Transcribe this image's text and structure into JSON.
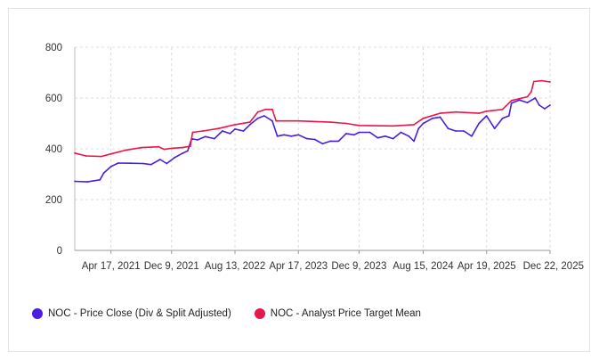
{
  "chart_data": {
    "type": "line",
    "title": "",
    "xlabel": "",
    "ylabel": "",
    "ylim": [
      0,
      800
    ],
    "yticks": [
      0,
      200,
      400,
      600,
      800
    ],
    "xlim": [
      "2020-11-27",
      "2025-12-22"
    ],
    "xticks": [
      {
        "date": "2021-04-17",
        "label": "Apr 17, 2021"
      },
      {
        "date": "2021-12-09",
        "label": "Dec 9, 2021"
      },
      {
        "date": "2022-08-13",
        "label": "Aug 13, 2022"
      },
      {
        "date": "2023-04-17",
        "label": "Apr 17, 2023"
      },
      {
        "date": "2023-12-09",
        "label": "Dec 9, 2023"
      },
      {
        "date": "2024-08-15",
        "label": "Aug 15, 2024"
      },
      {
        "date": "2025-04-19",
        "label": "Apr 19, 2025"
      },
      {
        "date": "2025-12-22",
        "label": "Dec 22, 2025"
      }
    ],
    "grid": true,
    "legend_position": "bottom-left",
    "series": [
      {
        "name": "NOC - Price Close (Div & Split Adjusted)",
        "color": "#4a1fe0",
        "points": [
          [
            "2020-11-27",
            272
          ],
          [
            "2021-01-15",
            270
          ],
          [
            "2021-03-05",
            278
          ],
          [
            "2021-03-20",
            305
          ],
          [
            "2021-04-17",
            330
          ],
          [
            "2021-05-15",
            344
          ],
          [
            "2021-07-01",
            343
          ],
          [
            "2021-08-20",
            342
          ],
          [
            "2021-09-20",
            338
          ],
          [
            "2021-10-25",
            358
          ],
          [
            "2021-11-20",
            342
          ],
          [
            "2021-12-20",
            365
          ],
          [
            "2022-01-20",
            382
          ],
          [
            "2022-02-10",
            392
          ],
          [
            "2022-02-25",
            440
          ],
          [
            "2022-03-20",
            435
          ],
          [
            "2022-04-20",
            448
          ],
          [
            "2022-05-25",
            440
          ],
          [
            "2022-06-25",
            470
          ],
          [
            "2022-07-25",
            460
          ],
          [
            "2022-08-13",
            478
          ],
          [
            "2022-09-15",
            470
          ],
          [
            "2022-10-10",
            495
          ],
          [
            "2022-11-10",
            520
          ],
          [
            "2022-12-05",
            530
          ],
          [
            "2023-01-05",
            510
          ],
          [
            "2023-01-25",
            450
          ],
          [
            "2023-02-20",
            455
          ],
          [
            "2023-03-20",
            450
          ],
          [
            "2023-04-17",
            455
          ],
          [
            "2023-05-20",
            440
          ],
          [
            "2023-06-20",
            437
          ],
          [
            "2023-07-20",
            420
          ],
          [
            "2023-08-20",
            430
          ],
          [
            "2023-09-20",
            430
          ],
          [
            "2023-10-20",
            460
          ],
          [
            "2023-11-20",
            455
          ],
          [
            "2023-12-09",
            465
          ],
          [
            "2024-01-20",
            465
          ],
          [
            "2024-02-20",
            443
          ],
          [
            "2024-03-20",
            450
          ],
          [
            "2024-04-20",
            440
          ],
          [
            "2024-05-20",
            465
          ],
          [
            "2024-06-20",
            450
          ],
          [
            "2024-07-10",
            430
          ],
          [
            "2024-07-28",
            480
          ],
          [
            "2024-08-15",
            500
          ],
          [
            "2024-09-20",
            520
          ],
          [
            "2024-10-20",
            525
          ],
          [
            "2024-11-20",
            480
          ],
          [
            "2024-12-20",
            470
          ],
          [
            "2025-01-20",
            470
          ],
          [
            "2025-02-20",
            450
          ],
          [
            "2025-03-20",
            500
          ],
          [
            "2025-04-19",
            530
          ],
          [
            "2025-05-20",
            480
          ],
          [
            "2025-06-20",
            520
          ],
          [
            "2025-07-15",
            530
          ],
          [
            "2025-07-25",
            580
          ],
          [
            "2025-08-25",
            592
          ],
          [
            "2025-09-25",
            582
          ],
          [
            "2025-10-25",
            600
          ],
          [
            "2025-11-10",
            572
          ],
          [
            "2025-12-01",
            558
          ],
          [
            "2025-12-22",
            572
          ]
        ]
      },
      {
        "name": "NOC - Analyst Price Target Mean",
        "color": "#e8174a",
        "points": [
          [
            "2020-11-27",
            383
          ],
          [
            "2021-01-10",
            372
          ],
          [
            "2021-03-10",
            370
          ],
          [
            "2021-04-17",
            380
          ],
          [
            "2021-06-15",
            395
          ],
          [
            "2021-08-15",
            405
          ],
          [
            "2021-10-20",
            408
          ],
          [
            "2021-11-10",
            398
          ],
          [
            "2021-12-09",
            402
          ],
          [
            "2022-01-20",
            405
          ],
          [
            "2022-02-20",
            410
          ],
          [
            "2022-03-01",
            465
          ],
          [
            "2022-04-10",
            470
          ],
          [
            "2022-06-10",
            480
          ],
          [
            "2022-08-13",
            495
          ],
          [
            "2022-10-10",
            505
          ],
          [
            "2022-11-10",
            545
          ],
          [
            "2022-12-10",
            555
          ],
          [
            "2023-01-05",
            555
          ],
          [
            "2023-01-20",
            510
          ],
          [
            "2023-04-17",
            510
          ],
          [
            "2023-08-20",
            505
          ],
          [
            "2023-10-20",
            500
          ],
          [
            "2023-12-09",
            492
          ],
          [
            "2024-04-20",
            490
          ],
          [
            "2024-07-10",
            495
          ],
          [
            "2024-08-15",
            520
          ],
          [
            "2024-10-20",
            540
          ],
          [
            "2024-12-20",
            545
          ],
          [
            "2025-03-20",
            540
          ],
          [
            "2025-04-19",
            548
          ],
          [
            "2025-06-20",
            555
          ],
          [
            "2025-07-25",
            590
          ],
          [
            "2025-09-25",
            605
          ],
          [
            "2025-10-10",
            625
          ],
          [
            "2025-10-20",
            665
          ],
          [
            "2025-11-20",
            668
          ],
          [
            "2025-12-22",
            663
          ]
        ]
      }
    ]
  }
}
